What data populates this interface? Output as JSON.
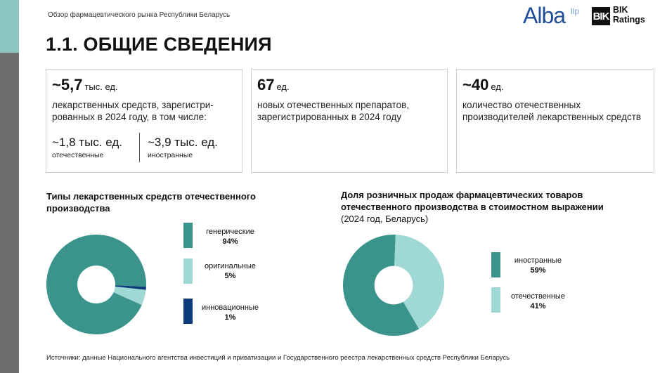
{
  "header": {
    "subtitle": "Обзор фармацевтического рынка Республики Беларусь",
    "title": "1.1. ОБЩИЕ СВЕДЕНИЯ"
  },
  "logos": {
    "alba": "Alba",
    "alba_suffix": "llp",
    "bik_mark": "BIK",
    "bik_line1": "BIK",
    "bik_line2": "Ratings"
  },
  "cards": [
    {
      "value": "~5,7",
      "unit": "тыс. ед.",
      "description": "лекарственных средств, зарегистри-рованных в 2024 году, в том числе:",
      "sub_left_value": "~1,8 тыс. ед.",
      "sub_left_label": "отечественные",
      "sub_right_value": "~3,9 тыс. ед.",
      "sub_right_label": "иностранные"
    },
    {
      "value": "67",
      "unit": "ед.",
      "description": "новых отечественных препаратов, зарегистрированных в 2024 году"
    },
    {
      "value": "~40",
      "unit": "ед.",
      "description": "количество отечественных производителей лекарственных средств"
    }
  ],
  "chart_data": [
    {
      "type": "pie",
      "title": "Типы лекарственных средств отечественного производства",
      "categories": [
        "генерические",
        "оригинальные",
        "инновационные"
      ],
      "values": [
        94,
        5,
        1
      ],
      "labels": [
        "94%",
        "5%",
        "1%"
      ],
      "colors": [
        "#3a948c",
        "#9fd8d4",
        "#0d3a7a"
      ]
    },
    {
      "type": "pie",
      "title": "Доля розничных продаж фармацевтических товаров отечественного производства в стоимостном выражении",
      "subtitle": "(2024 год, Беларусь)",
      "categories": [
        "иностранные",
        "отечественные"
      ],
      "values": [
        59,
        41
      ],
      "labels": [
        "59%",
        "41%"
      ],
      "colors": [
        "#3a948c",
        "#9fd8d4"
      ]
    }
  ],
  "footer": "Источники: данные Национального агентства инвестиций и приватизации и Государственного реестра лекарственных средств Республики Беларусь"
}
